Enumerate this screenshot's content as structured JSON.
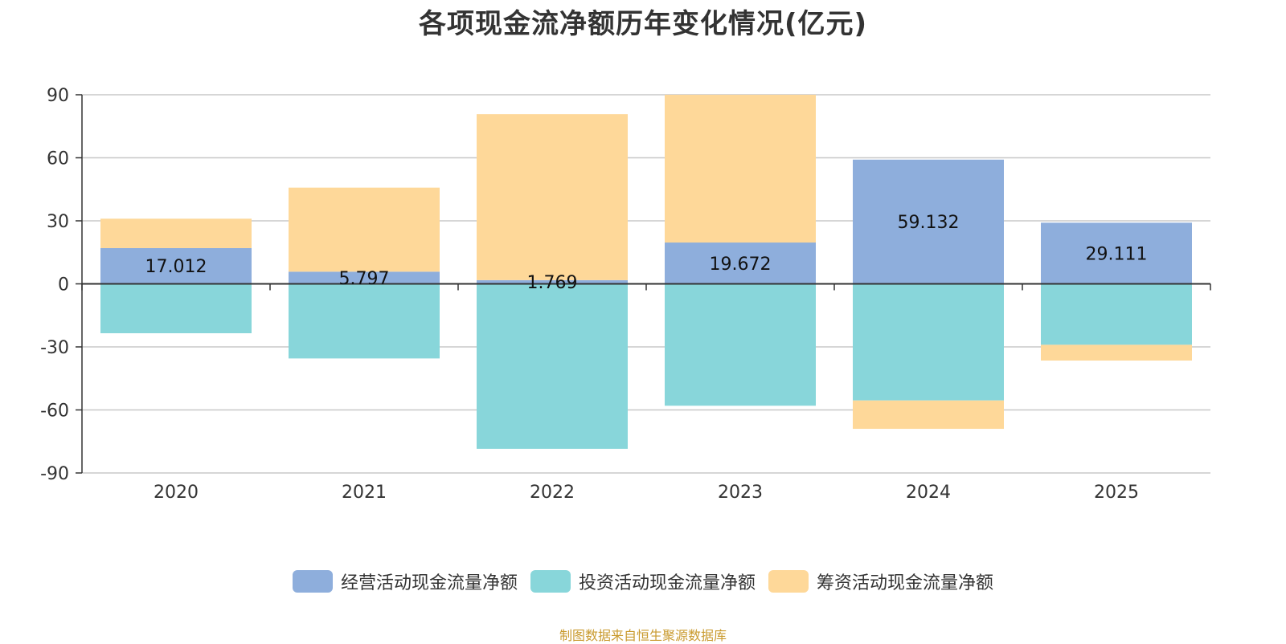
{
  "chart_data": {
    "type": "bar",
    "stacked": true,
    "title": "各项现金流净额历年变化情况(亿元)",
    "categories": [
      "2020",
      "2021",
      "2022",
      "2023",
      "2024",
      "2025"
    ],
    "ylim": [
      -90,
      90
    ],
    "yticks": [
      90,
      60,
      30,
      0,
      -30,
      -60,
      -90
    ],
    "ytick_labels": [
      "90",
      "60",
      "30",
      "0",
      "-30",
      "-60",
      "-90"
    ],
    "grid": true,
    "legend_position": "bottom",
    "series": [
      {
        "name": "经营活动现金流量净额",
        "color": "#8EAEDC",
        "values": [
          17.012,
          5.797,
          1.769,
          19.672,
          59.132,
          29.111
        ],
        "labels": [
          "17.012",
          "5.797",
          "1.769",
          "19.672",
          "59.132",
          "29.111"
        ]
      },
      {
        "name": "投资活动现金流量净额",
        "color": "#88D6DA",
        "values": [
          -23.5,
          -35.5,
          -78.5,
          -58.0,
          -55.5,
          -29.0
        ]
      },
      {
        "name": "筹资活动现金流量净额",
        "color": "#FED899",
        "values": [
          14.0,
          40.0,
          79.0,
          70.5,
          -13.5,
          -7.5
        ]
      }
    ]
  },
  "source": "制图数据来自恒生聚源数据库"
}
